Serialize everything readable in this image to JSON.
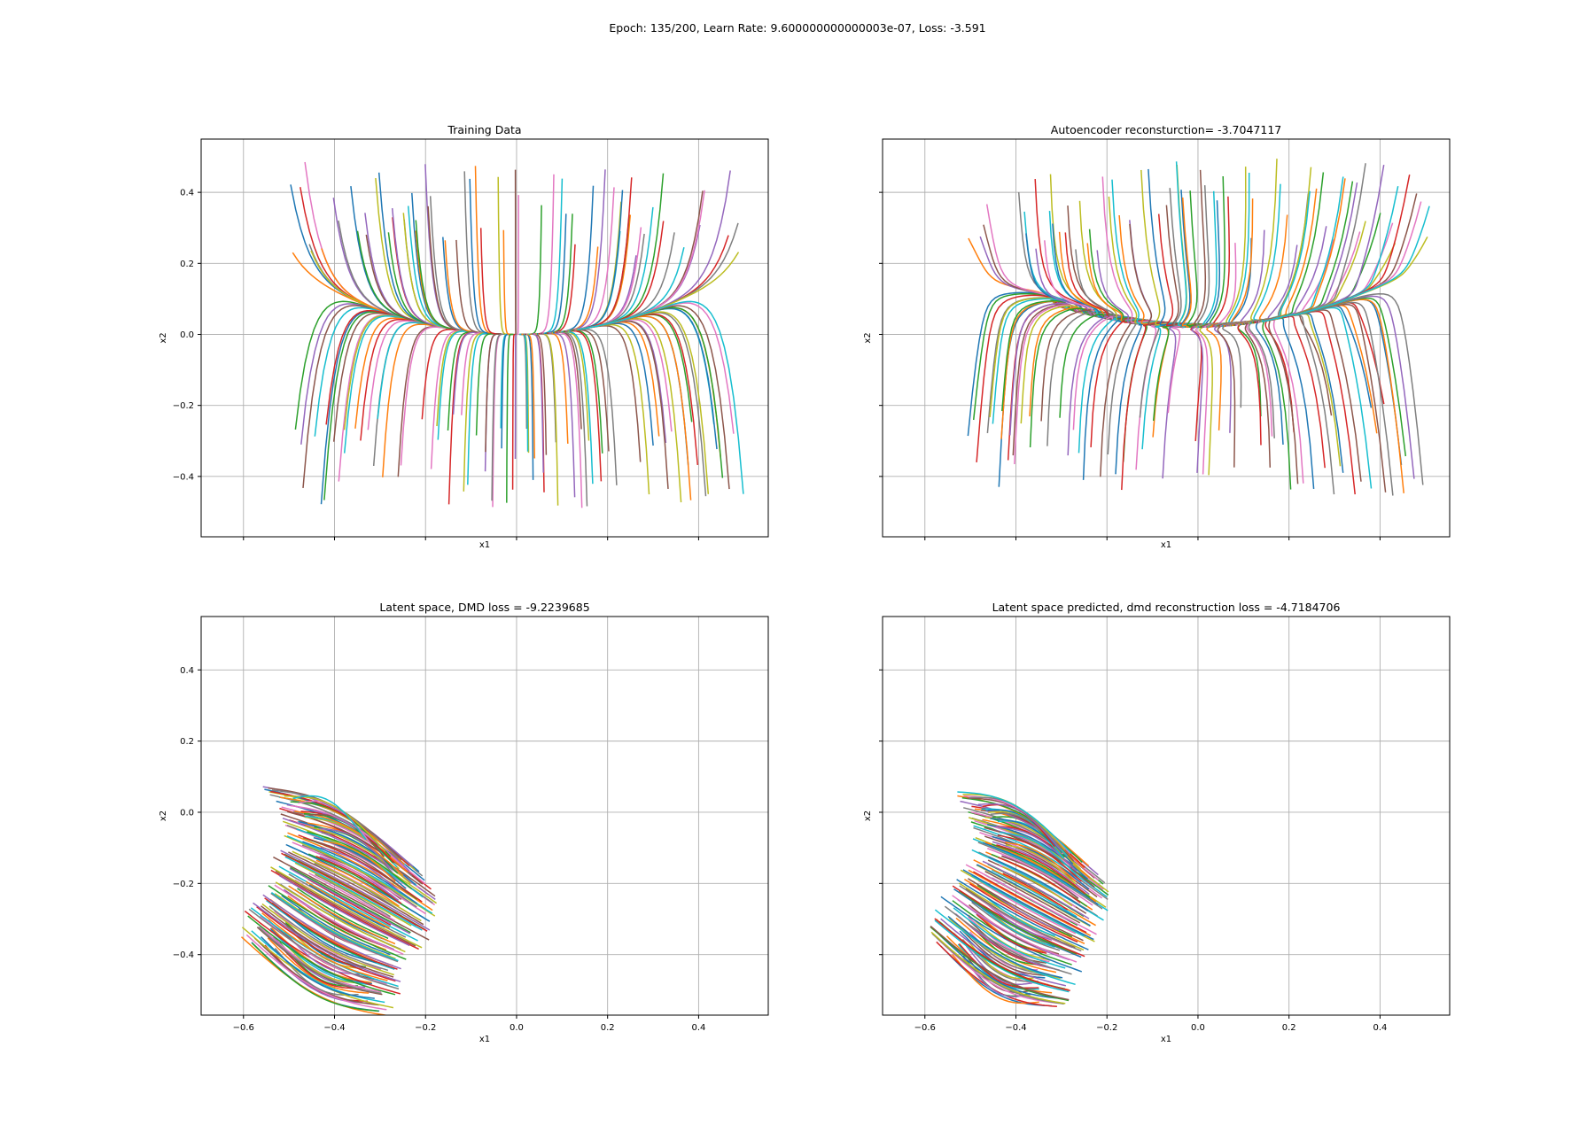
{
  "figure": {
    "suptitle": "Epoch: 135/200, Learn Rate: 9.600000000000003e-07, Loss: -3.591"
  },
  "colors": {
    "cycle": [
      "#1f77b4",
      "#ff7f0e",
      "#2ca02c",
      "#d62728",
      "#9467bd",
      "#8c564b",
      "#e377c2",
      "#7f7f7f",
      "#bcbd22",
      "#17becf"
    ],
    "grid": "#b0b0b0",
    "axes": "#000000",
    "background": "#ffffff"
  },
  "chart_data": [
    {
      "type": "line",
      "title": "Training Data",
      "xlabel": "x1",
      "ylabel": "x2",
      "xlim": [
        -0.693,
        0.553
      ],
      "ylim": [
        -0.57,
        0.55
      ],
      "grid": true,
      "x_ticks": [
        -0.6,
        -0.4,
        -0.2,
        0.0,
        0.2,
        0.4
      ],
      "x_tick_labels_shown": false,
      "y_ticks": [
        -0.4,
        -0.2,
        0.0,
        0.2,
        0.4
      ],
      "y_tick_labels": [
        "−0.4",
        "−0.2",
        "0.0",
        "0.2",
        "0.4"
      ],
      "y_tick_labels_shown": true,
      "field": "data",
      "series_summary": {
        "count": 150,
        "x_start_range": [
          -0.5,
          0.5
        ],
        "y_start_range": [
          -0.5,
          0.5
        ],
        "converges_to": [
          0.0,
          0.0
        ],
        "description": "trajectories starting at x2 ≈ ±0.45 flowing toward x2 = 0 and then along the curve x2 ≈ x1^2 toward the origin"
      }
    },
    {
      "type": "line",
      "title": "Autoencoder reconsturction= -3.7047117",
      "xlabel": "x1",
      "ylabel": "x2",
      "xlim": [
        -0.693,
        0.553
      ],
      "ylim": [
        -0.57,
        0.55
      ],
      "grid": true,
      "x_ticks": [
        -0.6,
        -0.4,
        -0.2,
        0.0,
        0.2,
        0.4
      ],
      "x_tick_labels_shown": false,
      "y_ticks": [
        -0.4,
        -0.2,
        0.0,
        0.2,
        0.4
      ],
      "y_tick_labels_shown": false,
      "field": "recon",
      "series_summary": {
        "count": 150,
        "x_start_range": [
          -0.53,
          0.5
        ],
        "y_start_range": [
          -0.52,
          0.5
        ],
        "converges_to": [
          0.0,
          0.03
        ]
      }
    },
    {
      "type": "line",
      "title": "Latent space, DMD loss = -9.2239685",
      "xlabel": "x1",
      "ylabel": "x2",
      "xlim": [
        -0.693,
        0.553
      ],
      "ylim": [
        -0.57,
        0.55
      ],
      "grid": true,
      "x_ticks": [
        -0.6,
        -0.4,
        -0.2,
        0.0,
        0.2,
        0.4
      ],
      "x_tick_labels": [
        "−0.6",
        "−0.4",
        "−0.2",
        "0.0",
        "0.2",
        "0.4"
      ],
      "x_tick_labels_shown": true,
      "y_ticks": [
        -0.4,
        -0.2,
        0.0,
        0.2,
        0.4
      ],
      "y_tick_labels": [
        "−0.4",
        "−0.2",
        "0.0",
        "0.2",
        "0.4"
      ],
      "y_tick_labels_shown": true,
      "field": "latent",
      "series_summary": {
        "count": 150,
        "x_range": [
          -0.63,
          -0.16
        ],
        "y_range": [
          -0.51,
          0.04
        ],
        "spine_curve": [
          [
            -0.34,
            -0.12
          ],
          [
            -0.37,
            -0.27
          ],
          [
            -0.43,
            -0.35
          ]
        ]
      }
    },
    {
      "type": "line",
      "title": "Latent space predicted, dmd reconstruction loss = -4.7184706",
      "xlabel": "x1",
      "ylabel": "x2",
      "xlim": [
        -0.693,
        0.553
      ],
      "ylim": [
        -0.57,
        0.55
      ],
      "grid": true,
      "x_ticks": [
        -0.6,
        -0.4,
        -0.2,
        0.0,
        0.2,
        0.4
      ],
      "x_tick_labels": [
        "−0.6",
        "−0.4",
        "−0.2",
        "0.0",
        "0.2",
        "0.4"
      ],
      "x_tick_labels_shown": true,
      "y_ticks": [
        -0.4,
        -0.2,
        0.0,
        0.2,
        0.4
      ],
      "y_tick_labels_shown": false,
      "field": "latentPred",
      "series_summary": {
        "count": 150,
        "x_range": [
          -0.61,
          -0.2
        ],
        "y_range": [
          -0.47,
          0.03
        ],
        "spine_curve": [
          [
            -0.35,
            -0.1
          ],
          [
            -0.38,
            -0.27
          ],
          [
            -0.43,
            -0.33
          ]
        ]
      }
    }
  ]
}
